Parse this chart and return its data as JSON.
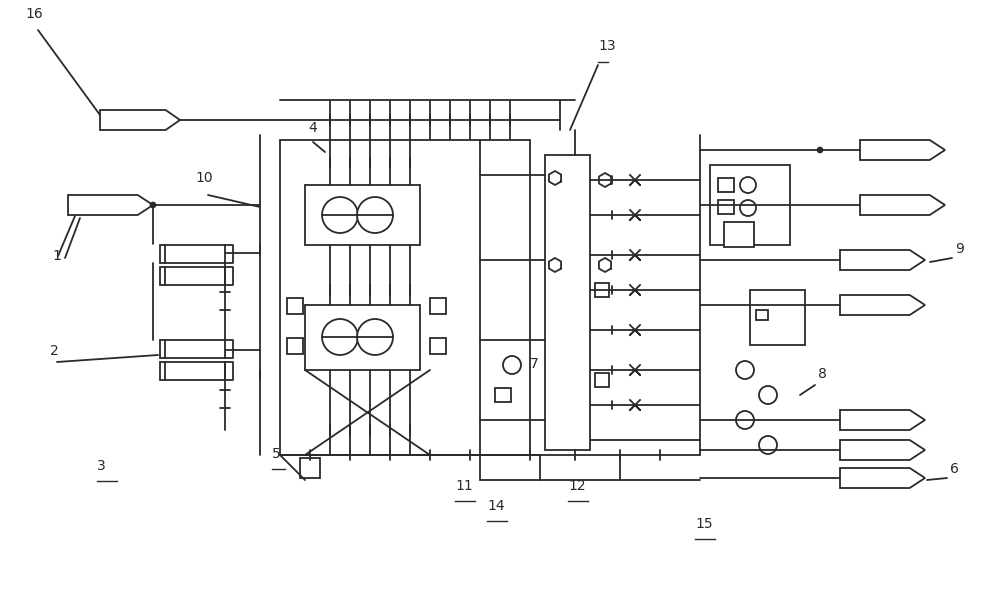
{
  "bg_color": "#ffffff",
  "lc": "#2a2a2a",
  "lw": 1.3,
  "figw": 10.0,
  "figh": 5.93,
  "dpi": 100
}
